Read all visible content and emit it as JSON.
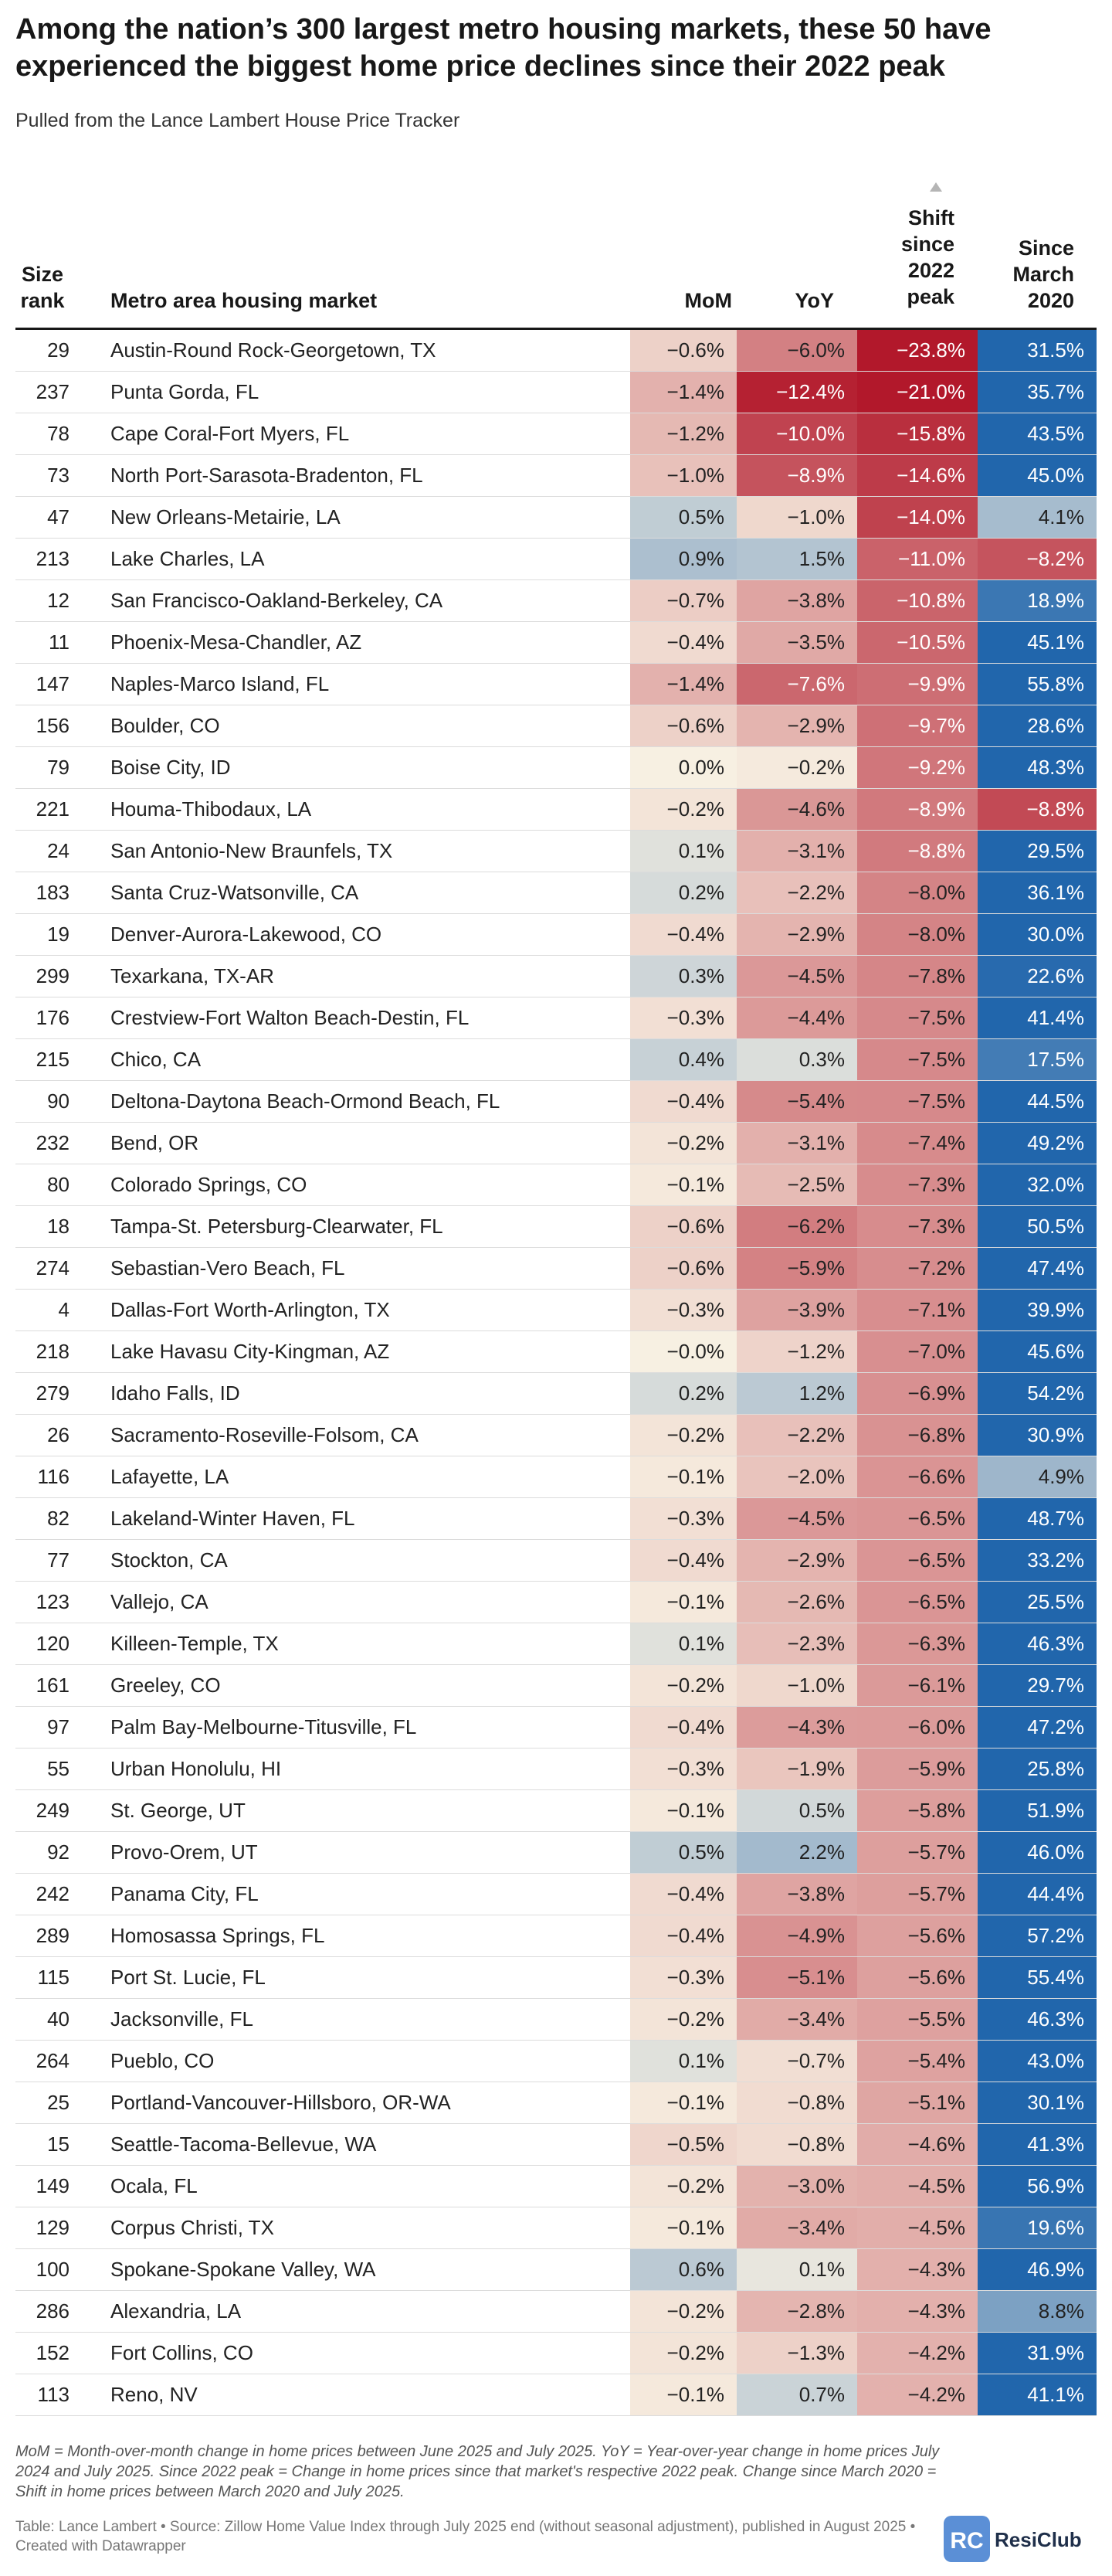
{
  "title": "Among the nation’s 300 largest metro housing markets, these 50 have experienced the biggest home price declines since their 2022 peak",
  "subtitle": "Pulled from the Lance Lambert House Price Tracker",
  "headers": {
    "rank_line1": "Size",
    "rank_line2": "rank",
    "metro": "Metro area housing market",
    "mom": "MoM",
    "yoy": "YoY",
    "shift_line1": "Shift",
    "shift_line2": "since",
    "shift_line3": "2022",
    "shift_line4": "peak",
    "since_line1": "Since",
    "since_line2": "March",
    "since_line3": "2020"
  },
  "chart_data": {
    "type": "table",
    "sorted_by": "Shift since 2022 peak",
    "columns": [
      "Size rank",
      "Metro area housing market",
      "MoM",
      "YoY",
      "Shift since 2022 peak",
      "Since March 2020"
    ],
    "rows": [
      {
        "rank": 29,
        "metro": "Austin-Round Rock-Georgetown, TX",
        "mom": -0.6,
        "yoy": -6.0,
        "shift": -23.8,
        "since": 31.5,
        "mom_label": "−0.6%",
        "yoy_label": "−6.0%",
        "shift_label": "−23.8%",
        "since_label": "31.5%"
      },
      {
        "rank": 237,
        "metro": "Punta Gorda, FL",
        "mom": -1.4,
        "yoy": -12.4,
        "shift": -21.0,
        "since": 35.7,
        "mom_label": "−1.4%",
        "yoy_label": "−12.4%",
        "shift_label": "−21.0%",
        "since_label": "35.7%"
      },
      {
        "rank": 78,
        "metro": "Cape Coral-Fort Myers, FL",
        "mom": -1.2,
        "yoy": -10.0,
        "shift": -15.8,
        "since": 43.5,
        "mom_label": "−1.2%",
        "yoy_label": "−10.0%",
        "shift_label": "−15.8%",
        "since_label": "43.5%"
      },
      {
        "rank": 73,
        "metro": "North Port-Sarasota-Bradenton, FL",
        "mom": -1.0,
        "yoy": -8.9,
        "shift": -14.6,
        "since": 45.0,
        "mom_label": "−1.0%",
        "yoy_label": "−8.9%",
        "shift_label": "−14.6%",
        "since_label": "45.0%"
      },
      {
        "rank": 47,
        "metro": "New Orleans-Metairie, LA",
        "mom": 0.5,
        "yoy": -1.0,
        "shift": -14.0,
        "since": 4.1,
        "mom_label": "0.5%",
        "yoy_label": "−1.0%",
        "shift_label": "−14.0%",
        "since_label": "4.1%"
      },
      {
        "rank": 213,
        "metro": "Lake Charles, LA",
        "mom": 0.9,
        "yoy": 1.5,
        "shift": -11.0,
        "since": -8.2,
        "mom_label": "0.9%",
        "yoy_label": "1.5%",
        "shift_label": "−11.0%",
        "since_label": "−8.2%"
      },
      {
        "rank": 12,
        "metro": "San Francisco-Oakland-Berkeley, CA",
        "mom": -0.7,
        "yoy": -3.8,
        "shift": -10.8,
        "since": 18.9,
        "mom_label": "−0.7%",
        "yoy_label": "−3.8%",
        "shift_label": "−10.8%",
        "since_label": "18.9%"
      },
      {
        "rank": 11,
        "metro": "Phoenix-Mesa-Chandler, AZ",
        "mom": -0.4,
        "yoy": -3.5,
        "shift": -10.5,
        "since": 45.1,
        "mom_label": "−0.4%",
        "yoy_label": "−3.5%",
        "shift_label": "−10.5%",
        "since_label": "45.1%"
      },
      {
        "rank": 147,
        "metro": "Naples-Marco Island, FL",
        "mom": -1.4,
        "yoy": -7.6,
        "shift": -9.9,
        "since": 55.8,
        "mom_label": "−1.4%",
        "yoy_label": "−7.6%",
        "shift_label": "−9.9%",
        "since_label": "55.8%"
      },
      {
        "rank": 156,
        "metro": "Boulder, CO",
        "mom": -0.6,
        "yoy": -2.9,
        "shift": -9.7,
        "since": 28.6,
        "mom_label": "−0.6%",
        "yoy_label": "−2.9%",
        "shift_label": "−9.7%",
        "since_label": "28.6%"
      },
      {
        "rank": 79,
        "metro": "Boise City, ID",
        "mom": 0.0,
        "yoy": -0.2,
        "shift": -9.2,
        "since": 48.3,
        "mom_label": "0.0%",
        "yoy_label": "−0.2%",
        "shift_label": "−9.2%",
        "since_label": "48.3%"
      },
      {
        "rank": 221,
        "metro": "Houma-Thibodaux, LA",
        "mom": -0.2,
        "yoy": -4.6,
        "shift": -8.9,
        "since": -8.8,
        "mom_label": "−0.2%",
        "yoy_label": "−4.6%",
        "shift_label": "−8.9%",
        "since_label": "−8.8%"
      },
      {
        "rank": 24,
        "metro": "San Antonio-New Braunfels, TX",
        "mom": 0.1,
        "yoy": -3.1,
        "shift": -8.8,
        "since": 29.5,
        "mom_label": "0.1%",
        "yoy_label": "−3.1%",
        "shift_label": "−8.8%",
        "since_label": "29.5%"
      },
      {
        "rank": 183,
        "metro": "Santa Cruz-Watsonville, CA",
        "mom": 0.2,
        "yoy": -2.2,
        "shift": -8.0,
        "since": 36.1,
        "mom_label": "0.2%",
        "yoy_label": "−2.2%",
        "shift_label": "−8.0%",
        "since_label": "36.1%"
      },
      {
        "rank": 19,
        "metro": "Denver-Aurora-Lakewood, CO",
        "mom": -0.4,
        "yoy": -2.9,
        "shift": -8.0,
        "since": 30.0,
        "mom_label": "−0.4%",
        "yoy_label": "−2.9%",
        "shift_label": "−8.0%",
        "since_label": "30.0%"
      },
      {
        "rank": 299,
        "metro": "Texarkana, TX-AR",
        "mom": 0.3,
        "yoy": -4.5,
        "shift": -7.8,
        "since": 22.6,
        "mom_label": "0.3%",
        "yoy_label": "−4.5%",
        "shift_label": "−7.8%",
        "since_label": "22.6%"
      },
      {
        "rank": 176,
        "metro": "Crestview-Fort Walton Beach-Destin, FL",
        "mom": -0.3,
        "yoy": -4.4,
        "shift": -7.5,
        "since": 41.4,
        "mom_label": "−0.3%",
        "yoy_label": "−4.4%",
        "shift_label": "−7.5%",
        "since_label": "41.4%"
      },
      {
        "rank": 215,
        "metro": "Chico, CA",
        "mom": 0.4,
        "yoy": 0.3,
        "shift": -7.5,
        "since": 17.5,
        "mom_label": "0.4%",
        "yoy_label": "0.3%",
        "shift_label": "−7.5%",
        "since_label": "17.5%"
      },
      {
        "rank": 90,
        "metro": "Deltona-Daytona Beach-Ormond Beach, FL",
        "mom": -0.4,
        "yoy": -5.4,
        "shift": -7.5,
        "since": 44.5,
        "mom_label": "−0.4%",
        "yoy_label": "−5.4%",
        "shift_label": "−7.5%",
        "since_label": "44.5%"
      },
      {
        "rank": 232,
        "metro": "Bend, OR",
        "mom": -0.2,
        "yoy": -3.1,
        "shift": -7.4,
        "since": 49.2,
        "mom_label": "−0.2%",
        "yoy_label": "−3.1%",
        "shift_label": "−7.4%",
        "since_label": "49.2%"
      },
      {
        "rank": 80,
        "metro": "Colorado Springs, CO",
        "mom": -0.1,
        "yoy": -2.5,
        "shift": -7.3,
        "since": 32.0,
        "mom_label": "−0.1%",
        "yoy_label": "−2.5%",
        "shift_label": "−7.3%",
        "since_label": "32.0%"
      },
      {
        "rank": 18,
        "metro": "Tampa-St. Petersburg-Clearwater, FL",
        "mom": -0.6,
        "yoy": -6.2,
        "shift": -7.3,
        "since": 50.5,
        "mom_label": "−0.6%",
        "yoy_label": "−6.2%",
        "shift_label": "−7.3%",
        "since_label": "50.5%"
      },
      {
        "rank": 274,
        "metro": "Sebastian-Vero Beach, FL",
        "mom": -0.6,
        "yoy": -5.9,
        "shift": -7.2,
        "since": 47.4,
        "mom_label": "−0.6%",
        "yoy_label": "−5.9%",
        "shift_label": "−7.2%",
        "since_label": "47.4%"
      },
      {
        "rank": 4,
        "metro": "Dallas-Fort Worth-Arlington, TX",
        "mom": -0.3,
        "yoy": -3.9,
        "shift": -7.1,
        "since": 39.9,
        "mom_label": "−0.3%",
        "yoy_label": "−3.9%",
        "shift_label": "−7.1%",
        "since_label": "39.9%"
      },
      {
        "rank": 218,
        "metro": "Lake Havasu City-Kingman, AZ",
        "mom": -0.0,
        "yoy": -1.2,
        "shift": -7.0,
        "since": 45.6,
        "mom_label": "−0.0%",
        "yoy_label": "−1.2%",
        "shift_label": "−7.0%",
        "since_label": "45.6%"
      },
      {
        "rank": 279,
        "metro": "Idaho Falls, ID",
        "mom": 0.2,
        "yoy": 1.2,
        "shift": -6.9,
        "since": 54.2,
        "mom_label": "0.2%",
        "yoy_label": "1.2%",
        "shift_label": "−6.9%",
        "since_label": "54.2%"
      },
      {
        "rank": 26,
        "metro": "Sacramento-Roseville-Folsom, CA",
        "mom": -0.2,
        "yoy": -2.2,
        "shift": -6.8,
        "since": 30.9,
        "mom_label": "−0.2%",
        "yoy_label": "−2.2%",
        "shift_label": "−6.8%",
        "since_label": "30.9%"
      },
      {
        "rank": 116,
        "metro": "Lafayette, LA",
        "mom": -0.1,
        "yoy": -2.0,
        "shift": -6.6,
        "since": 4.9,
        "mom_label": "−0.1%",
        "yoy_label": "−2.0%",
        "shift_label": "−6.6%",
        "since_label": "4.9%"
      },
      {
        "rank": 82,
        "metro": "Lakeland-Winter Haven, FL",
        "mom": -0.3,
        "yoy": -4.5,
        "shift": -6.5,
        "since": 48.7,
        "mom_label": "−0.3%",
        "yoy_label": "−4.5%",
        "shift_label": "−6.5%",
        "since_label": "48.7%"
      },
      {
        "rank": 77,
        "metro": "Stockton, CA",
        "mom": -0.4,
        "yoy": -2.9,
        "shift": -6.5,
        "since": 33.2,
        "mom_label": "−0.4%",
        "yoy_label": "−2.9%",
        "shift_label": "−6.5%",
        "since_label": "33.2%"
      },
      {
        "rank": 123,
        "metro": "Vallejo, CA",
        "mom": -0.1,
        "yoy": -2.6,
        "shift": -6.5,
        "since": 25.5,
        "mom_label": "−0.1%",
        "yoy_label": "−2.6%",
        "shift_label": "−6.5%",
        "since_label": "25.5%"
      },
      {
        "rank": 120,
        "metro": "Killeen-Temple, TX",
        "mom": 0.1,
        "yoy": -2.3,
        "shift": -6.3,
        "since": 46.3,
        "mom_label": "0.1%",
        "yoy_label": "−2.3%",
        "shift_label": "−6.3%",
        "since_label": "46.3%"
      },
      {
        "rank": 161,
        "metro": "Greeley, CO",
        "mom": -0.2,
        "yoy": -1.0,
        "shift": -6.1,
        "since": 29.7,
        "mom_label": "−0.2%",
        "yoy_label": "−1.0%",
        "shift_label": "−6.1%",
        "since_label": "29.7%"
      },
      {
        "rank": 97,
        "metro": "Palm Bay-Melbourne-Titusville, FL",
        "mom": -0.4,
        "yoy": -4.3,
        "shift": -6.0,
        "since": 47.2,
        "mom_label": "−0.4%",
        "yoy_label": "−4.3%",
        "shift_label": "−6.0%",
        "since_label": "47.2%"
      },
      {
        "rank": 55,
        "metro": "Urban Honolulu, HI",
        "mom": -0.3,
        "yoy": -1.9,
        "shift": -5.9,
        "since": 25.8,
        "mom_label": "−0.3%",
        "yoy_label": "−1.9%",
        "shift_label": "−5.9%",
        "since_label": "25.8%"
      },
      {
        "rank": 249,
        "metro": "St. George, UT",
        "mom": -0.1,
        "yoy": 0.5,
        "shift": -5.8,
        "since": 51.9,
        "mom_label": "−0.1%",
        "yoy_label": "0.5%",
        "shift_label": "−5.8%",
        "since_label": "51.9%"
      },
      {
        "rank": 92,
        "metro": "Provo-Orem, UT",
        "mom": 0.5,
        "yoy": 2.2,
        "shift": -5.7,
        "since": 46.0,
        "mom_label": "0.5%",
        "yoy_label": "2.2%",
        "shift_label": "−5.7%",
        "since_label": "46.0%"
      },
      {
        "rank": 242,
        "metro": "Panama City, FL",
        "mom": -0.4,
        "yoy": -3.8,
        "shift": -5.7,
        "since": 44.4,
        "mom_label": "−0.4%",
        "yoy_label": "−3.8%",
        "shift_label": "−5.7%",
        "since_label": "44.4%"
      },
      {
        "rank": 289,
        "metro": "Homosassa Springs, FL",
        "mom": -0.4,
        "yoy": -4.9,
        "shift": -5.6,
        "since": 57.2,
        "mom_label": "−0.4%",
        "yoy_label": "−4.9%",
        "shift_label": "−5.6%",
        "since_label": "57.2%"
      },
      {
        "rank": 115,
        "metro": "Port St. Lucie, FL",
        "mom": -0.3,
        "yoy": -5.1,
        "shift": -5.6,
        "since": 55.4,
        "mom_label": "−0.3%",
        "yoy_label": "−5.1%",
        "shift_label": "−5.6%",
        "since_label": "55.4%"
      },
      {
        "rank": 40,
        "metro": "Jacksonville, FL",
        "mom": -0.2,
        "yoy": -3.4,
        "shift": -5.5,
        "since": 46.3,
        "mom_label": "−0.2%",
        "yoy_label": "−3.4%",
        "shift_label": "−5.5%",
        "since_label": "46.3%"
      },
      {
        "rank": 264,
        "metro": "Pueblo, CO",
        "mom": 0.1,
        "yoy": -0.7,
        "shift": -5.4,
        "since": 43.0,
        "mom_label": "0.1%",
        "yoy_label": "−0.7%",
        "shift_label": "−5.4%",
        "since_label": "43.0%"
      },
      {
        "rank": 25,
        "metro": "Portland-Vancouver-Hillsboro, OR-WA",
        "mom": -0.1,
        "yoy": -0.8,
        "shift": -5.1,
        "since": 30.1,
        "mom_label": "−0.1%",
        "yoy_label": "−0.8%",
        "shift_label": "−5.1%",
        "since_label": "30.1%"
      },
      {
        "rank": 15,
        "metro": "Seattle-Tacoma-Bellevue, WA",
        "mom": -0.5,
        "yoy": -0.8,
        "shift": -4.6,
        "since": 41.3,
        "mom_label": "−0.5%",
        "yoy_label": "−0.8%",
        "shift_label": "−4.6%",
        "since_label": "41.3%"
      },
      {
        "rank": 149,
        "metro": "Ocala, FL",
        "mom": -0.2,
        "yoy": -3.0,
        "shift": -4.5,
        "since": 56.9,
        "mom_label": "−0.2%",
        "yoy_label": "−3.0%",
        "shift_label": "−4.5%",
        "since_label": "56.9%"
      },
      {
        "rank": 129,
        "metro": "Corpus Christi, TX",
        "mom": -0.1,
        "yoy": -3.4,
        "shift": -4.5,
        "since": 19.6,
        "mom_label": "−0.1%",
        "yoy_label": "−3.4%",
        "shift_label": "−4.5%",
        "since_label": "19.6%"
      },
      {
        "rank": 100,
        "metro": "Spokane-Spokane Valley, WA",
        "mom": 0.6,
        "yoy": 0.1,
        "shift": -4.3,
        "since": 46.9,
        "mom_label": "0.6%",
        "yoy_label": "0.1%",
        "shift_label": "−4.3%",
        "since_label": "46.9%"
      },
      {
        "rank": 286,
        "metro": "Alexandria, LA",
        "mom": -0.2,
        "yoy": -2.8,
        "shift": -4.3,
        "since": 8.8,
        "mom_label": "−0.2%",
        "yoy_label": "−2.8%",
        "shift_label": "−4.3%",
        "since_label": "8.8%"
      },
      {
        "rank": 152,
        "metro": "Fort Collins, CO",
        "mom": -0.2,
        "yoy": -1.3,
        "shift": -4.2,
        "since": 31.9,
        "mom_label": "−0.2%",
        "yoy_label": "−1.3%",
        "shift_label": "−4.2%",
        "since_label": "31.9%"
      },
      {
        "rank": 113,
        "metro": "Reno, NV",
        "mom": -0.1,
        "yoy": 0.7,
        "shift": -4.2,
        "since": 41.1,
        "mom_label": "−0.1%",
        "yoy_label": "0.7%",
        "shift_label": "−4.2%",
        "since_label": "41.1%"
      }
    ]
  },
  "footnote": "MoM = Month-over-month change in home prices between June 2025 and July 2025. YoY = Year-over-year change in home prices July 2024 and July 2025. Since 2022 peak = Change in home prices since that market's respective 2022 peak. Change since March 2020 = Shift in home prices between March 2020 and July 2025.",
  "source": "Table: Lance Lambert • Source: Zillow Home Value Index through July 2025 end (without seasonal adjustment), published in August 2025 • Created with Datawrapper",
  "logo": {
    "mark_letters": "RC",
    "text": "ResiClub"
  },
  "colors": {
    "strong_red": "#b2182b",
    "pale_cream": "#f7f0e2",
    "strong_blue": "#2166ac"
  }
}
